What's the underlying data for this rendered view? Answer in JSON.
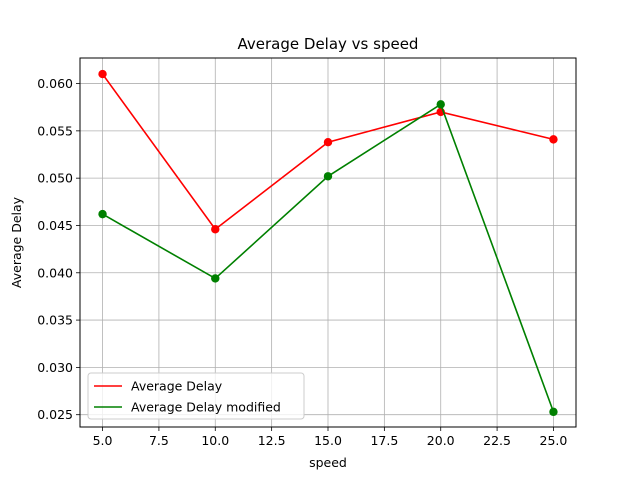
{
  "chart_data": {
    "type": "line",
    "title": "Average Delay vs speed",
    "xlabel": "speed",
    "ylabel": "Average Delay",
    "x": [
      5,
      10,
      15,
      20,
      25
    ],
    "xticks": [
      5.0,
      7.5,
      10.0,
      12.5,
      15.0,
      17.5,
      20.0,
      22.5,
      25.0
    ],
    "xtick_labels": [
      "5.0",
      "7.5",
      "10.0",
      "12.5",
      "15.0",
      "17.5",
      "20.0",
      "22.5",
      "25.0"
    ],
    "yticks": [
      0.025,
      0.03,
      0.035,
      0.04,
      0.045,
      0.05,
      0.055,
      0.06
    ],
    "ytick_labels": [
      "0.025",
      "0.030",
      "0.035",
      "0.040",
      "0.045",
      "0.050",
      "0.055",
      "0.060"
    ],
    "xlim": [
      4.0,
      26.0
    ],
    "ylim": [
      0.0237,
      0.0627
    ],
    "grid": true,
    "legend_position": "lower-left",
    "series": [
      {
        "name": "Average Delay",
        "color": "#ff0000",
        "values": [
          0.061,
          0.0446,
          0.0538,
          0.057,
          0.0541
        ]
      },
      {
        "name": "Average Delay modified",
        "color": "#008000",
        "values": [
          0.0462,
          0.0394,
          0.0502,
          0.0578,
          0.0253
        ]
      }
    ]
  }
}
